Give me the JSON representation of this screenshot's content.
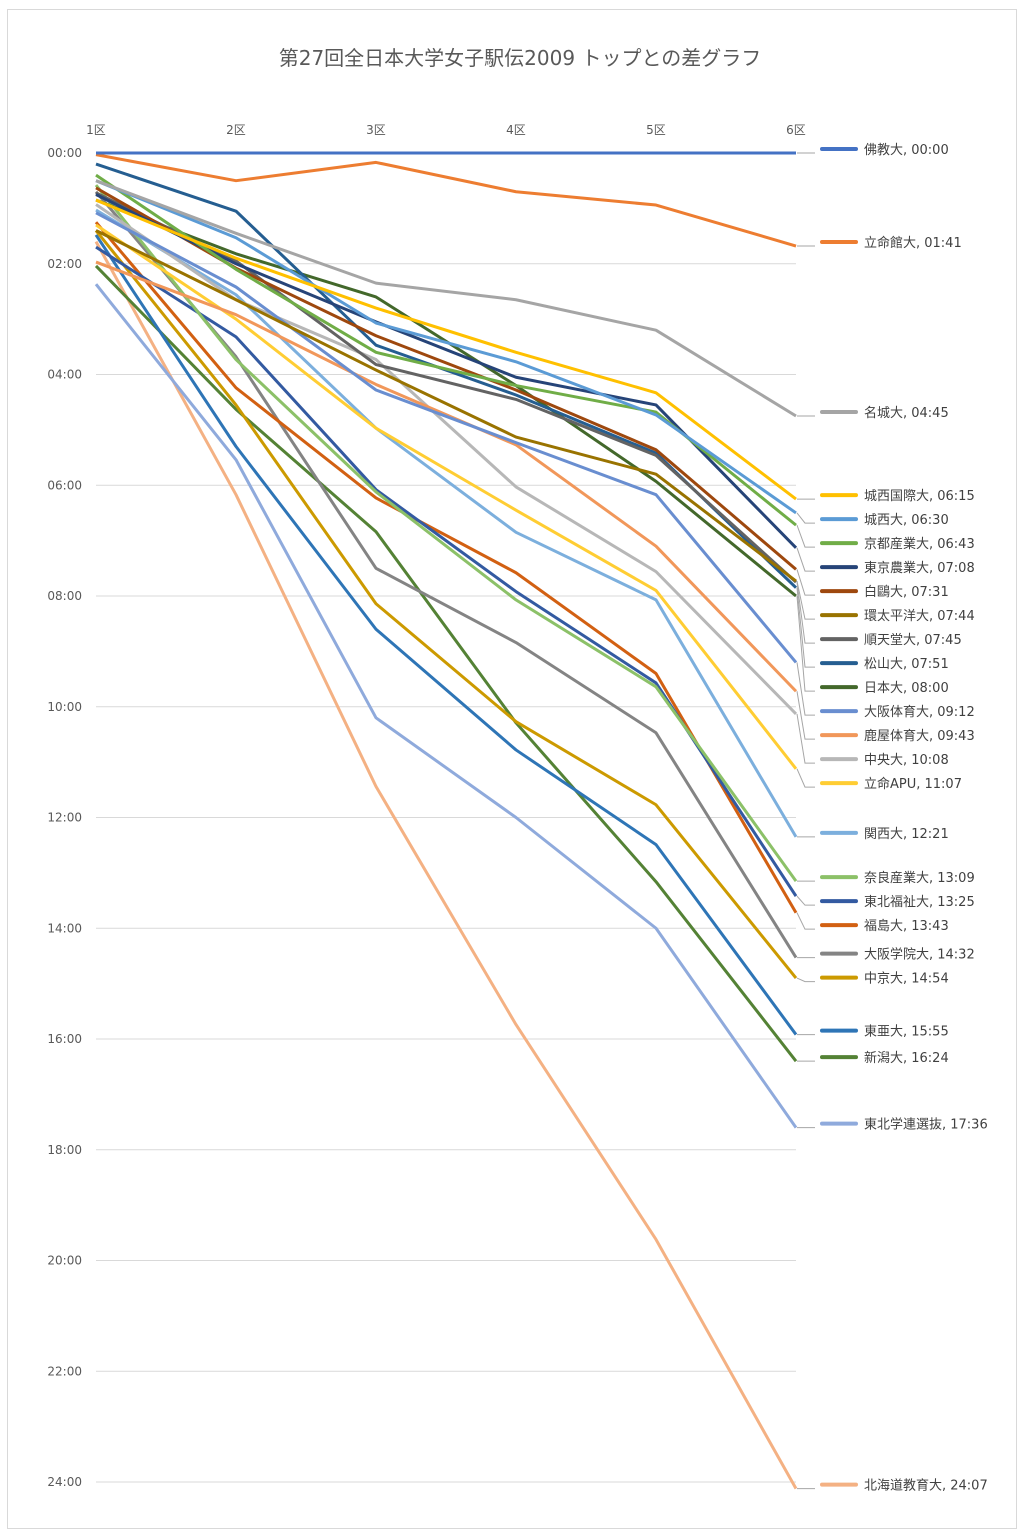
{
  "chart_data": {
    "type": "line",
    "title": "第27回全日本大学女子駅伝2009 トップとの差グラフ",
    "xlabel": "",
    "ylabel": "",
    "categories": [
      "1区",
      "2区",
      "3区",
      "4区",
      "5区",
      "6区"
    ],
    "y_axis": {
      "unit": "minutes behind top",
      "min": 0,
      "max": 24,
      "inverted": true,
      "tick_step": 2,
      "tick_labels": [
        "00:00",
        "02:00",
        "04:00",
        "06:00",
        "08:00",
        "10:00",
        "12:00",
        "14:00",
        "16:00",
        "18:00",
        "20:00",
        "22:00",
        "24:00"
      ]
    },
    "grid": true,
    "legend": "data labels at right end of each line",
    "series": [
      {
        "name": "佛教大",
        "final_label": "00:00",
        "color": "#4472C4",
        "values": [
          0,
          0,
          0,
          0,
          0,
          0
        ]
      },
      {
        "name": "立命館大",
        "final_label": "01:41",
        "color": "#ED7D31",
        "values": [
          0.03,
          0.5,
          0.17,
          0.7,
          0.94,
          1.68
        ]
      },
      {
        "name": "名城大",
        "final_label": "04:45",
        "color": "#A5A5A5",
        "values": [
          0.5,
          1.45,
          2.35,
          2.65,
          3.2,
          4.75
        ]
      },
      {
        "name": "城西国際大",
        "final_label": "06:15",
        "color": "#FFC000",
        "values": [
          0.85,
          1.9,
          2.8,
          3.6,
          4.33,
          6.25
        ]
      },
      {
        "name": "城西大",
        "final_label": "06:30",
        "color": "#5B9BD5",
        "values": [
          0.5,
          1.53,
          3.07,
          3.77,
          4.73,
          6.5
        ]
      },
      {
        "name": "京都産業大",
        "final_label": "06:43",
        "color": "#70AD47",
        "values": [
          0.4,
          2.1,
          3.6,
          4.2,
          4.68,
          6.72
        ]
      },
      {
        "name": "東京農業大",
        "final_label": "07:08",
        "color": "#264478",
        "values": [
          0.75,
          2.0,
          3.05,
          4.05,
          4.55,
          7.13
        ]
      },
      {
        "name": "白鷗大",
        "final_label": "07:31",
        "color": "#9E480E",
        "values": [
          0.63,
          2.08,
          3.3,
          4.28,
          5.36,
          7.52
        ]
      },
      {
        "name": "環太平洋大",
        "final_label": "07:44",
        "color": "#997300",
        "values": [
          1.4,
          2.65,
          3.92,
          5.13,
          5.8,
          7.73
        ]
      },
      {
        "name": "順天堂大",
        "final_label": "07:45",
        "color": "#636363",
        "values": [
          0.72,
          1.95,
          3.82,
          4.45,
          5.46,
          7.75
        ]
      },
      {
        "name": "松山大",
        "final_label": "07:51",
        "color": "#255E91",
        "values": [
          0.2,
          1.05,
          3.47,
          4.37,
          5.42,
          7.85
        ]
      },
      {
        "name": "日本大",
        "final_label": "08:00",
        "color": "#43682B",
        "values": [
          0.85,
          1.82,
          2.6,
          4.2,
          5.93,
          8.0
        ]
      },
      {
        "name": "大阪体育大",
        "final_label": "09:12",
        "color": "#698ED0",
        "values": [
          1.08,
          2.42,
          4.28,
          5.23,
          6.17,
          9.2
        ]
      },
      {
        "name": "鹿屋体育大",
        "final_label": "09:43",
        "color": "#F1975A",
        "values": [
          1.97,
          2.92,
          4.18,
          5.27,
          7.1,
          9.72
        ]
      },
      {
        "name": "中央大",
        "final_label": "10:08",
        "color": "#B7B7B7",
        "values": [
          0.93,
          2.65,
          3.73,
          6.03,
          7.56,
          10.13
        ]
      },
      {
        "name": "立命APU",
        "final_label": "11:07",
        "color": "#FFCD33",
        "values": [
          1.3,
          3.0,
          4.97,
          6.45,
          7.9,
          11.12
        ]
      },
      {
        "name": "関西大",
        "final_label": "12:21",
        "color": "#7CAFDD",
        "values": [
          1.03,
          2.56,
          4.97,
          6.85,
          8.07,
          12.35
        ]
      },
      {
        "name": "奈良産業大",
        "final_label": "13:09",
        "color": "#8CC168",
        "values": [
          0.58,
          3.73,
          6.12,
          8.07,
          9.64,
          13.15
        ]
      },
      {
        "name": "東北福祉大",
        "final_label": "13:25",
        "color": "#335AA1",
        "values": [
          1.7,
          3.32,
          6.08,
          7.92,
          9.57,
          13.42
        ]
      },
      {
        "name": "福島大",
        "final_label": "13:43",
        "color": "#D26012",
        "values": [
          1.25,
          4.24,
          6.23,
          7.58,
          9.4,
          13.72
        ]
      },
      {
        "name": "大阪学院大",
        "final_label": "14:32",
        "color": "#848484",
        "values": [
          0.7,
          3.68,
          7.5,
          8.84,
          10.47,
          14.53
        ]
      },
      {
        "name": "中京大",
        "final_label": "14:54",
        "color": "#CC9A00",
        "values": [
          1.4,
          4.55,
          8.14,
          10.27,
          11.77,
          14.9
        ]
      },
      {
        "name": "東亜大",
        "final_label": "15:55",
        "color": "#2E75B6",
        "values": [
          1.48,
          5.3,
          8.6,
          10.78,
          12.49,
          15.92
        ]
      },
      {
        "name": "新潟大",
        "final_label": "16:24",
        "color": "#548235",
        "values": [
          2.04,
          4.63,
          6.84,
          10.29,
          13.16,
          16.4
        ]
      },
      {
        "name": "東北学連選抜",
        "final_label": "17:36",
        "color": "#8FAADC",
        "values": [
          2.37,
          5.54,
          10.2,
          12.0,
          14.0,
          17.6
        ]
      },
      {
        "name": "北海道教育大",
        "final_label": "24:07",
        "color": "#F4B183",
        "values": [
          1.6,
          6.17,
          11.44,
          15.74,
          19.62,
          24.12
        ]
      }
    ],
    "overlapping_label_text": "環太平洋大, 07:44 / 順天堂大, 07:45"
  }
}
